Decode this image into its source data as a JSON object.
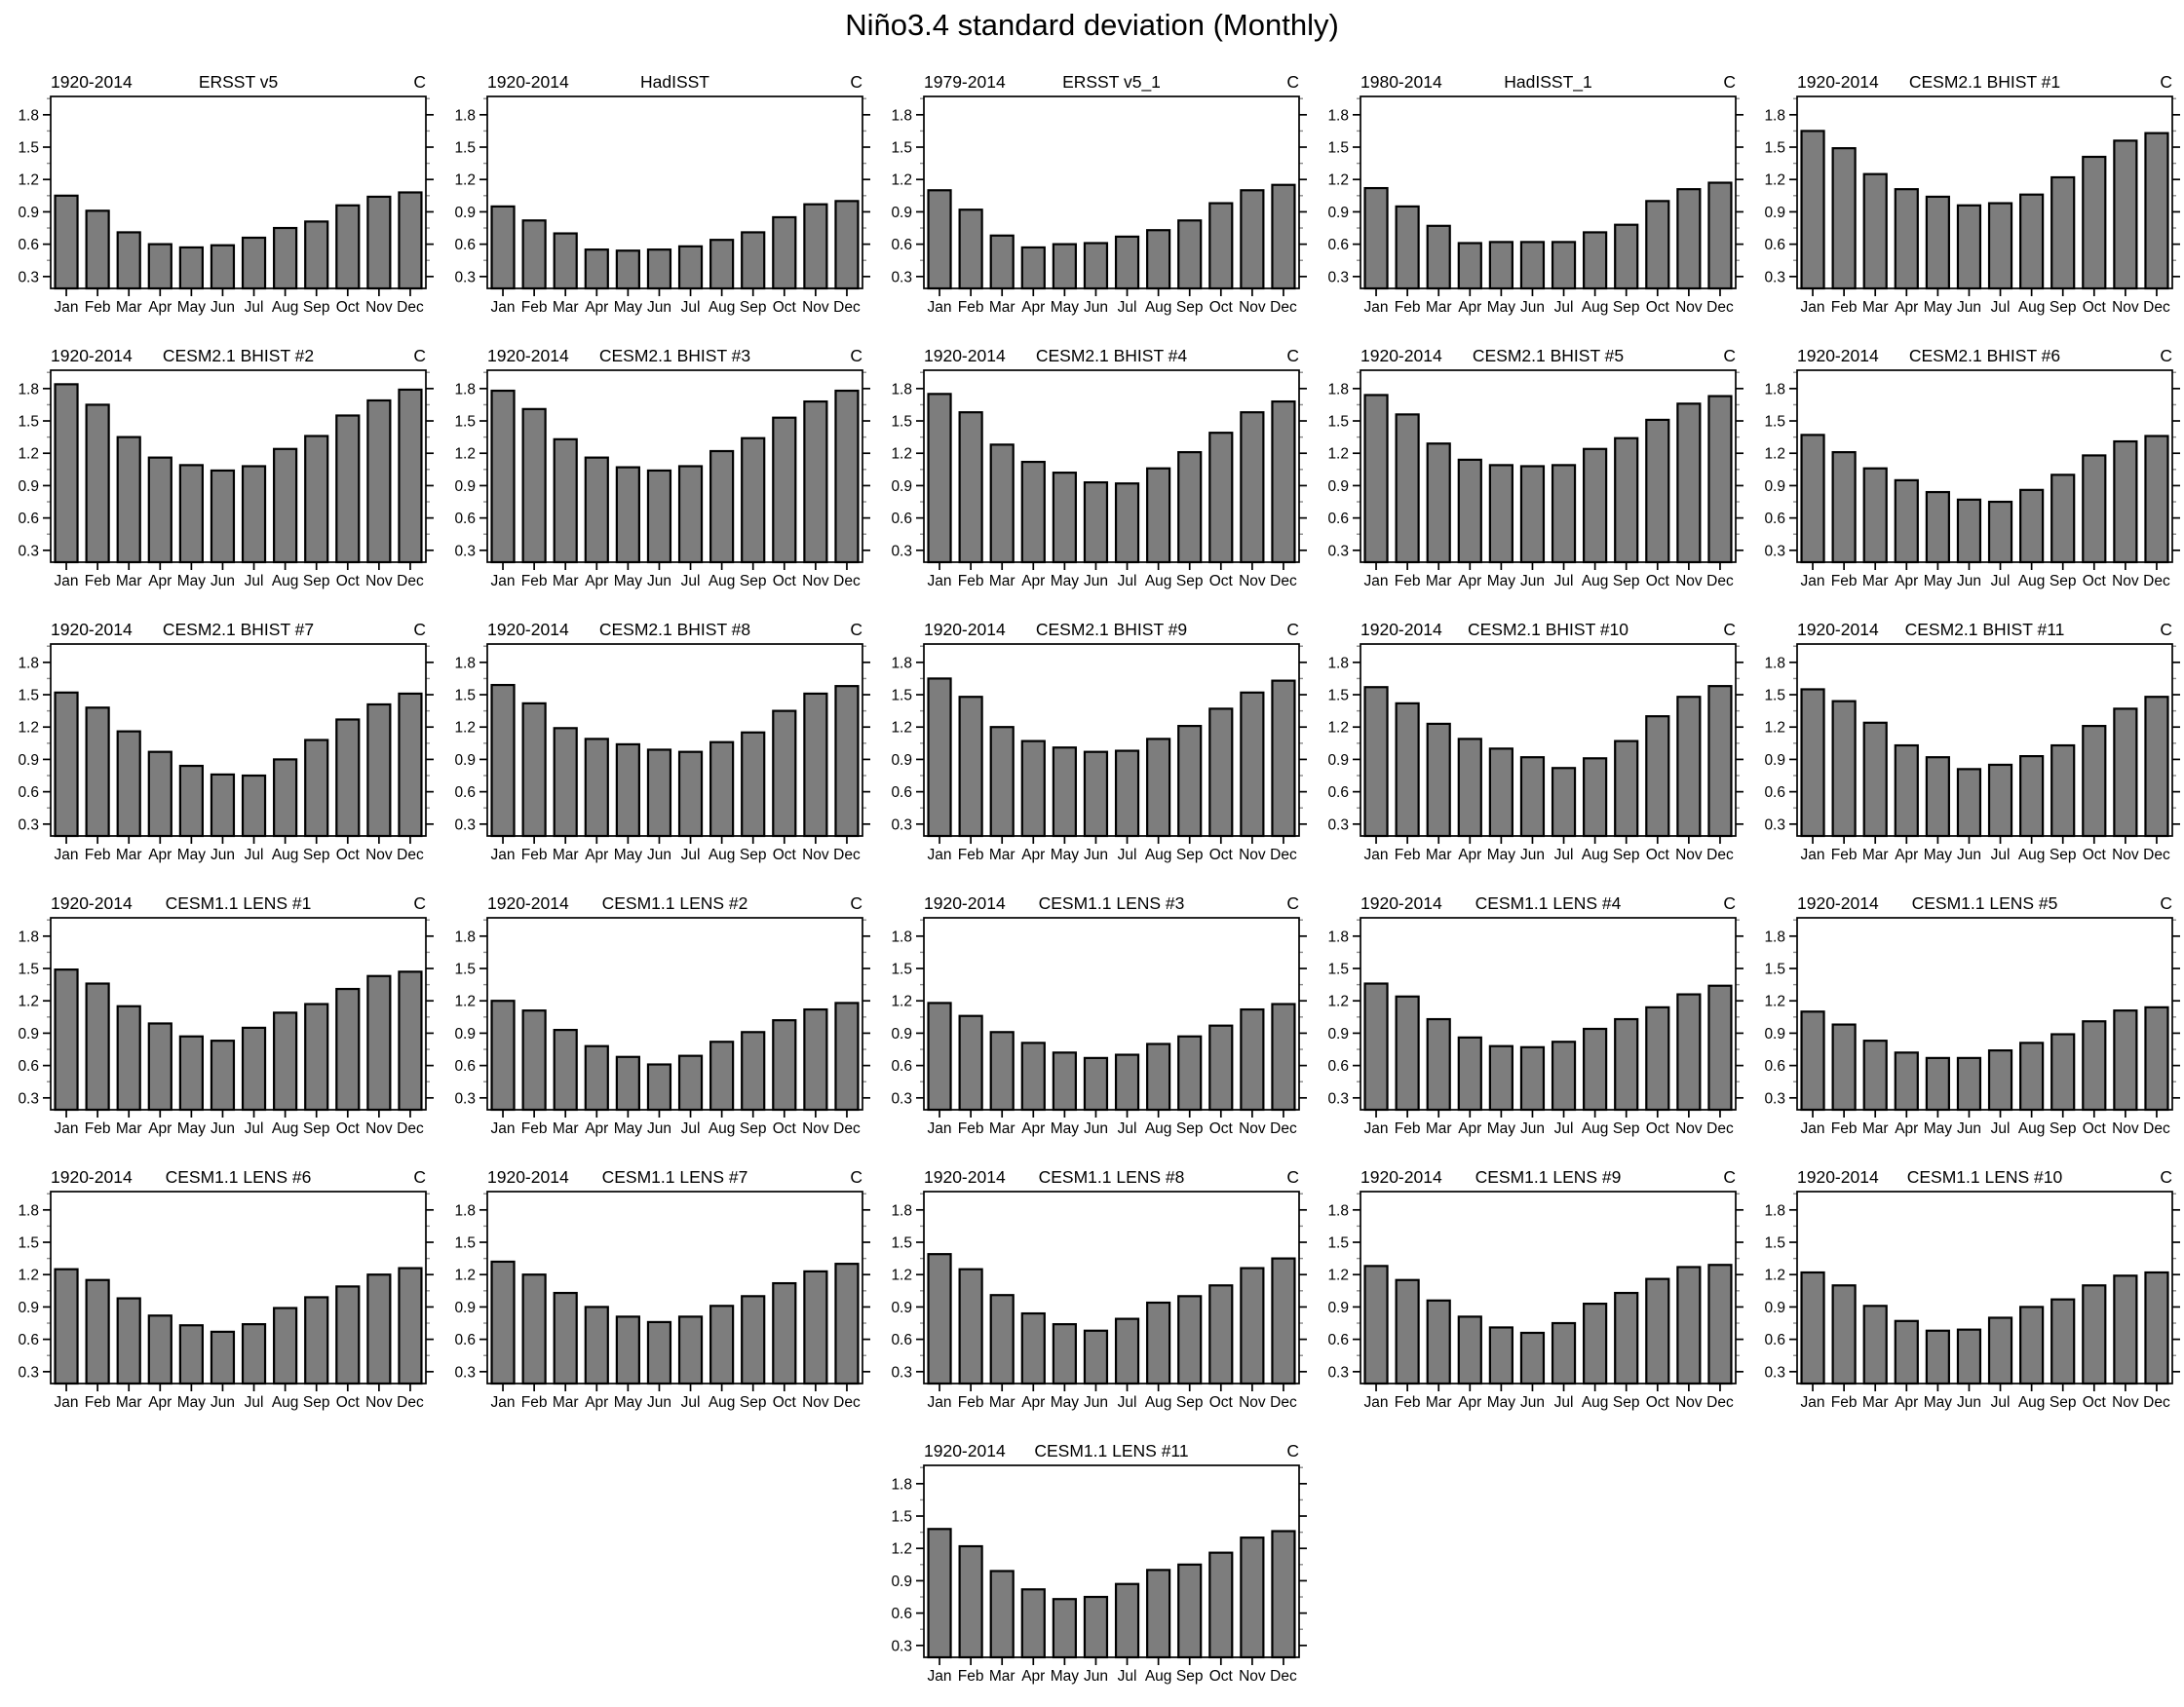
{
  "page_title": "Niño3.4 standard deviation (Monthly)",
  "chart_data": {
    "type": "bar",
    "title": "Niño3.4 standard deviation (Monthly)",
    "xlabel": "",
    "ylabel": "",
    "unit_label": "C",
    "categories": [
      "Jan",
      "Feb",
      "Mar",
      "Apr",
      "May",
      "Jun",
      "Jul",
      "Aug",
      "Sep",
      "Oct",
      "Nov",
      "Dec"
    ],
    "y_ticks": [
      0.3,
      0.6,
      0.9,
      1.2,
      1.5,
      1.8
    ],
    "ylim": [
      0.19,
      1.97
    ],
    "grid": false,
    "legend": false,
    "bar_color": "#7d7d7d",
    "bar_edge_color": "#000000",
    "layout": {
      "rows": 6,
      "cols": 5,
      "last_panel_column": 3
    },
    "series": [
      {
        "period": "1920-2014",
        "name": "ERSST v5",
        "unit": "C",
        "values": [
          1.05,
          0.91,
          0.71,
          0.6,
          0.57,
          0.59,
          0.66,
          0.75,
          0.81,
          0.96,
          1.04,
          1.08
        ]
      },
      {
        "period": "1920-2014",
        "name": "HadISST",
        "unit": "C",
        "values": [
          0.95,
          0.82,
          0.7,
          0.55,
          0.54,
          0.55,
          0.58,
          0.64,
          0.71,
          0.85,
          0.97,
          1.0
        ]
      },
      {
        "period": "1979-2014",
        "name": "ERSST v5_1",
        "unit": "C",
        "values": [
          1.1,
          0.92,
          0.68,
          0.57,
          0.6,
          0.61,
          0.67,
          0.73,
          0.82,
          0.98,
          1.1,
          1.15
        ]
      },
      {
        "period": "1980-2014",
        "name": "HadISST_1",
        "unit": "C",
        "values": [
          1.12,
          0.95,
          0.77,
          0.61,
          0.62,
          0.62,
          0.62,
          0.71,
          0.78,
          1.0,
          1.11,
          1.17
        ]
      },
      {
        "period": "1920-2014",
        "name": "CESM2.1 BHIST #1",
        "unit": "C",
        "values": [
          1.65,
          1.49,
          1.25,
          1.11,
          1.04,
          0.96,
          0.98,
          1.06,
          1.22,
          1.41,
          1.56,
          1.63
        ]
      },
      {
        "period": "1920-2014",
        "name": "CESM2.1 BHIST #2",
        "unit": "C",
        "values": [
          1.84,
          1.65,
          1.35,
          1.16,
          1.09,
          1.04,
          1.08,
          1.24,
          1.36,
          1.55,
          1.69,
          1.79
        ]
      },
      {
        "period": "1920-2014",
        "name": "CESM2.1 BHIST #3",
        "unit": "C",
        "values": [
          1.78,
          1.61,
          1.33,
          1.16,
          1.07,
          1.04,
          1.08,
          1.22,
          1.34,
          1.53,
          1.68,
          1.78
        ]
      },
      {
        "period": "1920-2014",
        "name": "CESM2.1 BHIST #4",
        "unit": "C",
        "values": [
          1.75,
          1.58,
          1.28,
          1.12,
          1.02,
          0.93,
          0.92,
          1.06,
          1.21,
          1.39,
          1.58,
          1.68
        ]
      },
      {
        "period": "1920-2014",
        "name": "CESM2.1 BHIST #5",
        "unit": "C",
        "values": [
          1.74,
          1.56,
          1.29,
          1.14,
          1.09,
          1.08,
          1.09,
          1.24,
          1.34,
          1.51,
          1.66,
          1.73
        ]
      },
      {
        "period": "1920-2014",
        "name": "CESM2.1 BHIST #6",
        "unit": "C",
        "values": [
          1.37,
          1.21,
          1.06,
          0.95,
          0.84,
          0.77,
          0.75,
          0.86,
          1.0,
          1.18,
          1.31,
          1.36
        ]
      },
      {
        "period": "1920-2014",
        "name": "CESM2.1 BHIST #7",
        "unit": "C",
        "values": [
          1.52,
          1.38,
          1.16,
          0.97,
          0.84,
          0.76,
          0.75,
          0.9,
          1.08,
          1.27,
          1.41,
          1.51
        ]
      },
      {
        "period": "1920-2014",
        "name": "CESM2.1 BHIST #8",
        "unit": "C",
        "values": [
          1.59,
          1.42,
          1.19,
          1.09,
          1.04,
          0.99,
          0.97,
          1.06,
          1.15,
          1.35,
          1.51,
          1.58
        ]
      },
      {
        "period": "1920-2014",
        "name": "CESM2.1 BHIST #9",
        "unit": "C",
        "values": [
          1.65,
          1.48,
          1.2,
          1.07,
          1.01,
          0.97,
          0.98,
          1.09,
          1.21,
          1.37,
          1.52,
          1.63
        ]
      },
      {
        "period": "1920-2014",
        "name": "CESM2.1 BHIST #10",
        "unit": "C",
        "values": [
          1.57,
          1.42,
          1.23,
          1.09,
          1.0,
          0.92,
          0.82,
          0.91,
          1.07,
          1.3,
          1.48,
          1.58
        ]
      },
      {
        "period": "1920-2014",
        "name": "CESM2.1 BHIST #11",
        "unit": "C",
        "values": [
          1.55,
          1.44,
          1.24,
          1.03,
          0.92,
          0.81,
          0.85,
          0.93,
          1.03,
          1.21,
          1.37,
          1.48
        ]
      },
      {
        "period": "1920-2014",
        "name": "CESM1.1 LENS #1",
        "unit": "C",
        "values": [
          1.49,
          1.36,
          1.15,
          0.99,
          0.87,
          0.83,
          0.95,
          1.09,
          1.17,
          1.31,
          1.43,
          1.47
        ]
      },
      {
        "period": "1920-2014",
        "name": "CESM1.1 LENS #2",
        "unit": "C",
        "values": [
          1.2,
          1.11,
          0.93,
          0.78,
          0.68,
          0.61,
          0.69,
          0.82,
          0.91,
          1.02,
          1.12,
          1.18
        ]
      },
      {
        "period": "1920-2014",
        "name": "CESM1.1 LENS #3",
        "unit": "C",
        "values": [
          1.18,
          1.06,
          0.91,
          0.81,
          0.72,
          0.67,
          0.7,
          0.8,
          0.87,
          0.97,
          1.12,
          1.17
        ]
      },
      {
        "period": "1920-2014",
        "name": "CESM1.1 LENS #4",
        "unit": "C",
        "values": [
          1.36,
          1.24,
          1.03,
          0.86,
          0.78,
          0.77,
          0.82,
          0.94,
          1.03,
          1.14,
          1.26,
          1.34
        ]
      },
      {
        "period": "1920-2014",
        "name": "CESM1.1 LENS #5",
        "unit": "C",
        "values": [
          1.1,
          0.98,
          0.83,
          0.72,
          0.67,
          0.67,
          0.74,
          0.81,
          0.89,
          1.01,
          1.11,
          1.14
        ]
      },
      {
        "period": "1920-2014",
        "name": "CESM1.1 LENS #6",
        "unit": "C",
        "values": [
          1.25,
          1.15,
          0.98,
          0.82,
          0.73,
          0.67,
          0.74,
          0.89,
          0.99,
          1.09,
          1.2,
          1.26
        ]
      },
      {
        "period": "1920-2014",
        "name": "CESM1.1 LENS #7",
        "unit": "C",
        "values": [
          1.32,
          1.2,
          1.03,
          0.9,
          0.81,
          0.76,
          0.81,
          0.91,
          1.0,
          1.12,
          1.23,
          1.3
        ]
      },
      {
        "period": "1920-2014",
        "name": "CESM1.1 LENS #8",
        "unit": "C",
        "values": [
          1.39,
          1.25,
          1.01,
          0.84,
          0.74,
          0.68,
          0.79,
          0.94,
          1.0,
          1.1,
          1.26,
          1.35
        ]
      },
      {
        "period": "1920-2014",
        "name": "CESM1.1 LENS #9",
        "unit": "C",
        "values": [
          1.28,
          1.15,
          0.96,
          0.81,
          0.71,
          0.66,
          0.75,
          0.93,
          1.03,
          1.16,
          1.27,
          1.29
        ]
      },
      {
        "period": "1920-2014",
        "name": "CESM1.1 LENS #10",
        "unit": "C",
        "values": [
          1.22,
          1.1,
          0.91,
          0.77,
          0.68,
          0.69,
          0.8,
          0.9,
          0.97,
          1.1,
          1.19,
          1.22
        ]
      },
      {
        "period": "1920-2014",
        "name": "CESM1.1 LENS #11",
        "unit": "C",
        "values": [
          1.38,
          1.22,
          0.99,
          0.82,
          0.73,
          0.75,
          0.87,
          1.0,
          1.05,
          1.16,
          1.3,
          1.36
        ]
      }
    ]
  }
}
